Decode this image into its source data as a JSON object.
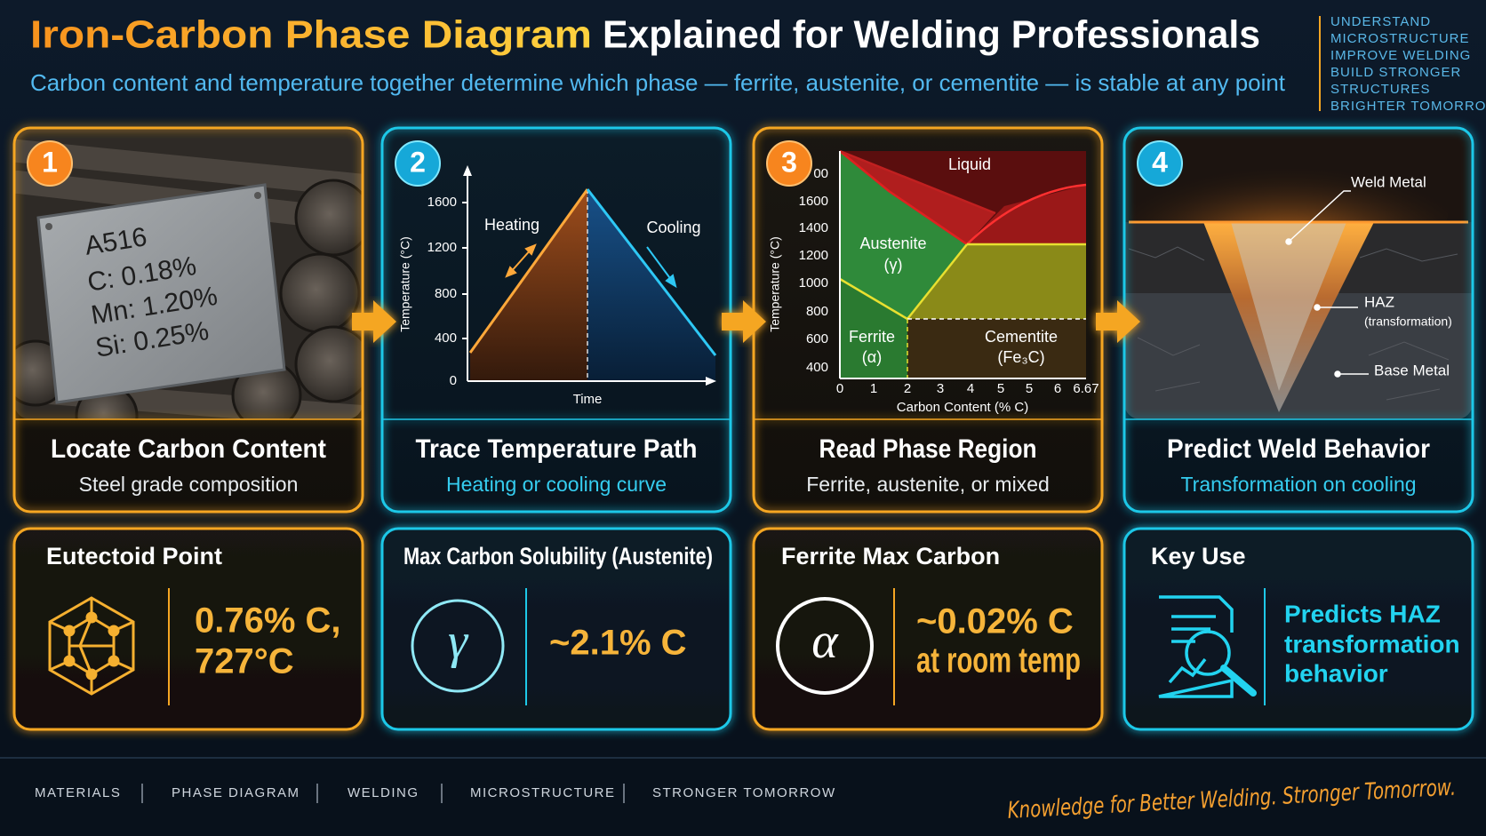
{
  "header": {
    "title_highlight": "Iron-Carbon Phase Diagram",
    "title_rest": "Explained for Welding Professionals",
    "subtitle": "Carbon content and temperature together determine which phase — ferrite, austenite, or cementite — is stable at any point",
    "tagline": [
      "UNDERSTAND",
      "MICROSTRUCTURE",
      "IMPROVE WELDING",
      "BUILD STRONGER",
      "STRUCTURES",
      "BRIGHTER TOMORROW"
    ]
  },
  "steps": [
    {
      "number": "1",
      "title": "Locate Carbon Content",
      "subtitle": "Steel grade composition",
      "plate": [
        "A516",
        "C: 0.18%",
        "Mn: 1.20%",
        "Si: 0.25%"
      ]
    },
    {
      "number": "2",
      "title": "Trace Temperature Path",
      "subtitle": "Heating or cooling curve",
      "y_label": "Temperature (°C)",
      "yticks": [
        "1600",
        "1200",
        "800",
        "400",
        "0"
      ],
      "x_label": "Time",
      "heating": "Heating",
      "cooling": "Cooling"
    },
    {
      "number": "3",
      "title": "Read Phase Region",
      "subtitle": "Ferrite, austenite, or mixed",
      "y_label": "Temperature (°C)",
      "yticks": [
        "00",
        "1600",
        "1400",
        "1200",
        "1000",
        "800",
        "600",
        "400"
      ],
      "xticks": [
        "0",
        "1",
        "2",
        "3",
        "4",
        "5",
        "5",
        "6",
        "6.67"
      ],
      "x_label": "Carbon Content (% C)",
      "regions": {
        "liquid": "Liquid",
        "austenite": [
          "Austenite",
          "(γ)"
        ],
        "ferrite": [
          "Ferrite",
          "(α)"
        ],
        "cementite": [
          "Cementite",
          "(Fe₃C)"
        ]
      }
    },
    {
      "number": "4",
      "title": "Predict Weld Behavior",
      "subtitle": "Transformation on cooling",
      "labels": {
        "weld_metal": "Weld Metal",
        "haz": [
          "HAZ",
          "(transformation)"
        ],
        "base_metal": "Base Metal"
      }
    }
  ],
  "facts": [
    {
      "title": "Eutectoid Point",
      "value": [
        "0.76% C,",
        "727°C"
      ]
    },
    {
      "title": "Max Carbon Solubility (Austenite)",
      "symbol": "γ",
      "value": [
        "~2.1% C"
      ]
    },
    {
      "title": "Ferrite Max Carbon",
      "symbol": "α",
      "value": [
        "~0.02% C",
        "at room temp"
      ]
    },
    {
      "title": "Key Use",
      "value": [
        "Predicts HAZ",
        "transformation",
        "behavior"
      ]
    }
  ],
  "footer": {
    "tags": [
      "MATERIALS",
      "PHASE DIAGRAM",
      "WELDING",
      "MICROSTRUCTURE",
      "STRONGER TOMORROW"
    ],
    "slogan": "Knowledge for Better Welding. Stronger Tomorrow."
  }
}
